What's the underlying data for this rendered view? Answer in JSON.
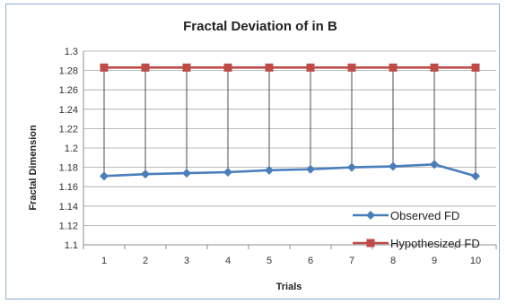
{
  "chart_data": {
    "type": "line",
    "title": "Fractal Deviation of in B",
    "xlabel": "Trials",
    "ylabel": "Fractal Dimension",
    "categories": [
      "1",
      "2",
      "3",
      "4",
      "5",
      "6",
      "7",
      "8",
      "9",
      "10"
    ],
    "ylim": [
      1.1,
      1.3
    ],
    "yticks": [
      "1.1",
      "1.12",
      "1.14",
      "1.16",
      "1.18",
      "1.2",
      "1.22",
      "1.24",
      "1.26",
      "1.28",
      "1.3"
    ],
    "grid": true,
    "legend": "bottom-right",
    "drop_lines": true,
    "series": [
      {
        "name": "Observed FD",
        "values": [
          1.171,
          1.173,
          1.174,
          1.175,
          1.177,
          1.178,
          1.18,
          1.181,
          1.183,
          1.171
        ],
        "color": "#4a7ebb",
        "marker": "diamond"
      },
      {
        "name": "Hypothesized FD",
        "values": [
          1.283,
          1.283,
          1.283,
          1.283,
          1.283,
          1.283,
          1.283,
          1.283,
          1.283,
          1.283
        ],
        "color": "#be4b48",
        "marker": "square"
      }
    ]
  }
}
